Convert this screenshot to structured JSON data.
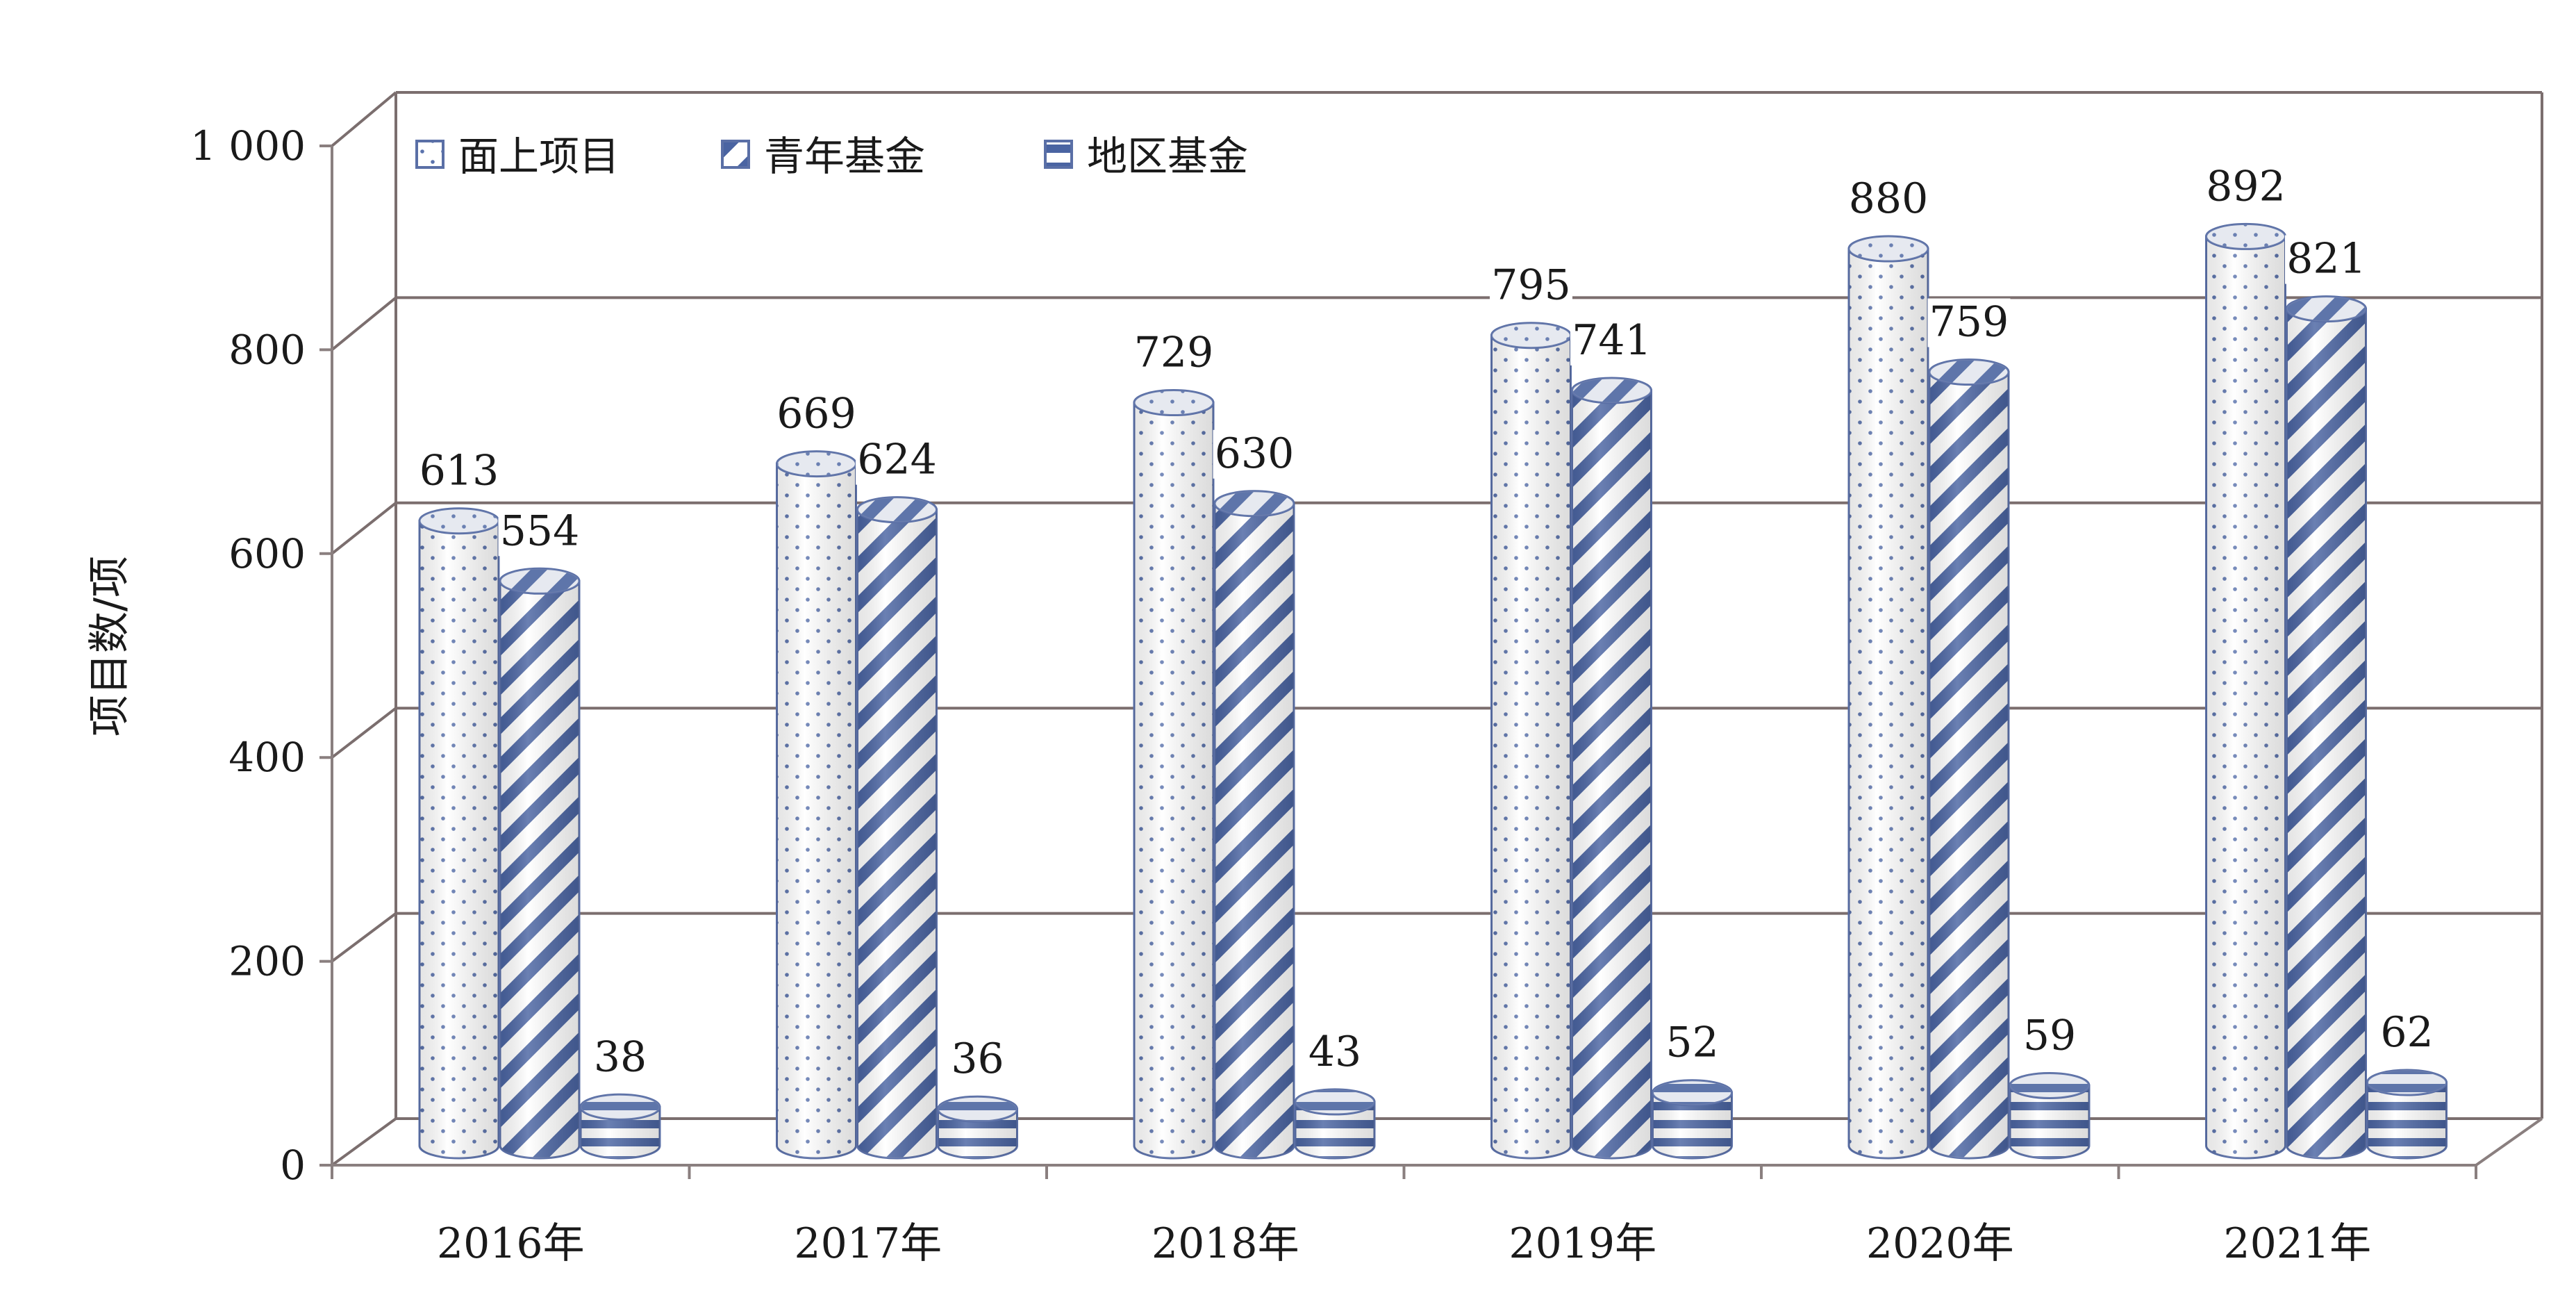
{
  "chart_data": {
    "type": "bar",
    "style": "3d-cylinder",
    "categories": [
      "2016年",
      "2017年",
      "2018年",
      "2019年",
      "2020年",
      "2021年"
    ],
    "series": [
      {
        "name": "面上项目",
        "values": [
          613,
          669,
          729,
          795,
          880,
          892
        ],
        "pattern": "dots"
      },
      {
        "name": "青年基金",
        "values": [
          554,
          624,
          630,
          741,
          759,
          821
        ],
        "pattern": "diagonal"
      },
      {
        "name": "地区基金",
        "values": [
          38,
          36,
          43,
          52,
          59,
          62
        ],
        "pattern": "horizontal"
      }
    ],
    "ylabel": "项目数/项",
    "xlabel": "",
    "ylim": [
      0,
      1000
    ],
    "yticks": [
      0,
      200,
      400,
      600,
      800,
      1000
    ],
    "ytick_labels": [
      "0",
      "200",
      "400",
      "600",
      "800",
      "1 000"
    ],
    "grid": true,
    "legend_position": "top-left",
    "colors": {
      "bar_stroke": "#5a6fa6",
      "pattern": "#4f67a3",
      "grid": "#7b6e6e",
      "axis": "#8a7f7f"
    }
  }
}
